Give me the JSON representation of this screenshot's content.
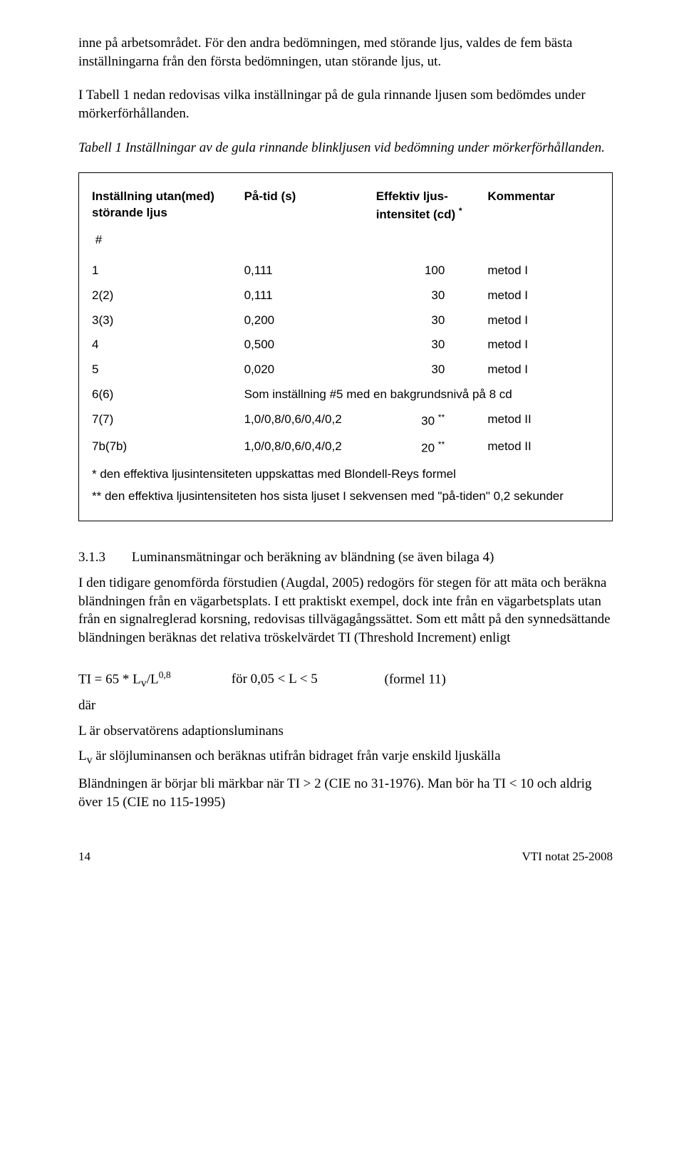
{
  "para1": "inne på arbetsområdet. För den andra bedömningen, med störande ljus, valdes de fem bästa inställningarna från den första bedömningen, utan störande ljus, ut.",
  "para2": "I Tabell 1 nedan redovisas vilka inställningar på de gula rinnande ljusen som bedömdes under mörkerförhållanden.",
  "caption": "Tabell 1  Inställningar av de gula rinnande blinkljusen vid bedömning under mörkerförhållanden.",
  "headers": {
    "h1a": "Inställning utan(med)",
    "h1b": "störande ljus",
    "h2": "På-tid (s)",
    "h3a": "Effektiv ljus-",
    "h3b": "intensitet (cd)",
    "h3sup": "*",
    "h4": "Kommentar",
    "hash": "#"
  },
  "rows": [
    {
      "a": "1",
      "b": "0,111",
      "c": "100",
      "d": "metod I"
    },
    {
      "a": "2(2)",
      "b": "0,111",
      "c": "30",
      "d": "metod I"
    },
    {
      "a": "3(3)",
      "b": "0,200",
      "c": "30",
      "d": "metod I"
    },
    {
      "a": "4",
      "b": "0,500",
      "c": "30",
      "d": "metod I"
    },
    {
      "a": "5",
      "b": "0,020",
      "c": "30",
      "d": "metod I"
    },
    {
      "a": "6(6)",
      "merged": "Som inställning #5 med en bakgrundsnivå på 8 cd"
    },
    {
      "a": "7(7)",
      "b": "1,0/0,8/0,6/0,4/0,2",
      "c": "30",
      "csup": "**",
      "d": "metod II"
    },
    {
      "a": "7b(7b)",
      "b": "1,0/0,8/0,6/0,4/0,2",
      "c": "20",
      "csup": "**",
      "d": "metod II"
    }
  ],
  "footnote1": "*  den effektiva ljusintensiteten uppskattas med Blondell-Reys formel",
  "footnote2": "** den effektiva ljusintensiteten hos sista ljuset I sekvensen med \"på-tiden\" 0,2 sekunder",
  "section": {
    "num": "3.1.3",
    "title": "Luminansmätningar och beräkning av bländning (se även bilaga 4)"
  },
  "para3": "I den tidigare genomförda förstudien (Augdal, 2005) redogörs för stegen för att mäta och beräkna bländningen från en vägarbetsplats. I ett praktiskt exempel, dock inte från en vägarbetsplats utan från en signalreglerad korsning, redovisas tillvägagångssättet. Som ett mått på den synnedsättande bländningen beräknas det relativa tröskelvärdet TI (Threshold Increment) enligt",
  "formula": {
    "lhs_pre": "TI = 65 * L",
    "lhs_sub": "v",
    "lhs_mid": "/L",
    "lhs_sup": "0,8",
    "range": "för  0,05 < L < 5",
    "ref": "(formel 11)"
  },
  "dar": "där",
  "para_L": "L är observatörens adaptionsluminans",
  "para_Lv_pre": "L",
  "para_Lv_sub": "v",
  "para_Lv_rest": " är slöjluminansen och beräknas utifrån bidraget från varje enskild ljuskälla",
  "para_ti": "Bländningen är börjar bli märkbar när TI > 2 (CIE no 31-1976). Man bör ha TI < 10 och aldrig över 15 (CIE no 115-1995)",
  "footer": {
    "page": "14",
    "doc": "VTI notat 25-2008"
  }
}
